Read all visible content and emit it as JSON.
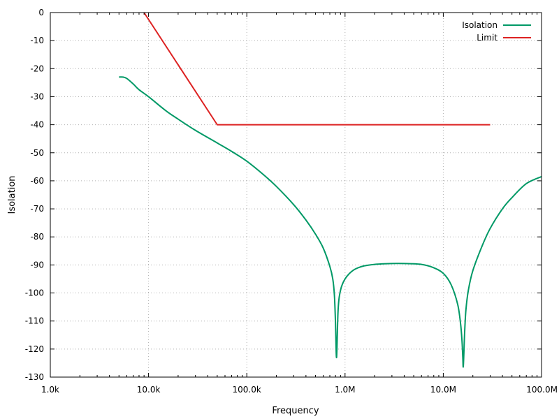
{
  "chart_data": {
    "type": "line",
    "xlabel": "Frequency",
    "ylabel": "Isolation",
    "xscale": "log",
    "xlim": [
      1000,
      100000000
    ],
    "ylim": [
      -130,
      0
    ],
    "grid": true,
    "legend_position": "top-right",
    "x_ticks": [
      {
        "value": 1000,
        "label": "1.0k"
      },
      {
        "value": 10000,
        "label": "10.0k"
      },
      {
        "value": 100000,
        "label": "100.0k"
      },
      {
        "value": 1000000,
        "label": "1.0M"
      },
      {
        "value": 10000000,
        "label": "10.0M"
      },
      {
        "value": 100000000,
        "label": "100.0M"
      }
    ],
    "y_ticks": [
      {
        "value": 0,
        "label": "0"
      },
      {
        "value": -10,
        "label": "-10"
      },
      {
        "value": -20,
        "label": "-20"
      },
      {
        "value": -30,
        "label": "-30"
      },
      {
        "value": -40,
        "label": "-40"
      },
      {
        "value": -50,
        "label": "-50"
      },
      {
        "value": -60,
        "label": "-60"
      },
      {
        "value": -70,
        "label": "-70"
      },
      {
        "value": -80,
        "label": "-80"
      },
      {
        "value": -90,
        "label": "-90"
      },
      {
        "value": -100,
        "label": "-100"
      },
      {
        "value": -110,
        "label": "-110"
      },
      {
        "value": -120,
        "label": "-120"
      },
      {
        "value": -130,
        "label": "-130"
      }
    ],
    "series": [
      {
        "name": "Isolation",
        "color": "#009966",
        "x": [
          5000,
          5500,
          6000,
          7000,
          8000,
          10000,
          15000,
          20000,
          30000,
          50000,
          70000,
          100000,
          150000,
          200000,
          300000,
          400000,
          500000,
          600000,
          700000,
          750000,
          780000,
          800000,
          820000,
          850000,
          900000,
          1000000,
          1200000,
          1500000,
          2000000,
          3000000,
          4000000,
          6000000,
          8000000,
          10000000,
          12000000,
          14000000,
          15000000,
          15500000,
          15800000,
          16000000,
          16500000,
          17000000,
          18000000,
          20000000,
          25000000,
          30000000,
          40000000,
          50000000,
          70000000,
          100000000
        ],
        "y": [
          -23,
          -23,
          -23.5,
          -25.5,
          -27.5,
          -30,
          -35,
          -38,
          -42,
          -46.5,
          -49.5,
          -53,
          -58,
          -62,
          -68.5,
          -74,
          -79,
          -84,
          -90.5,
          -95,
          -101,
          -111,
          -123,
          -106,
          -99,
          -95,
          -92,
          -90.5,
          -89.8,
          -89.5,
          -89.5,
          -89.8,
          -91,
          -93,
          -97,
          -104,
          -111,
          -117,
          -123,
          -126,
          -114,
          -106,
          -99,
          -92,
          -83,
          -77,
          -70,
          -66,
          -61,
          -58.5
        ]
      },
      {
        "name": "Limit",
        "color": "#dd2222",
        "x": [
          9000,
          50000,
          30000000
        ],
        "y": [
          0,
          -40,
          -40
        ]
      }
    ]
  }
}
